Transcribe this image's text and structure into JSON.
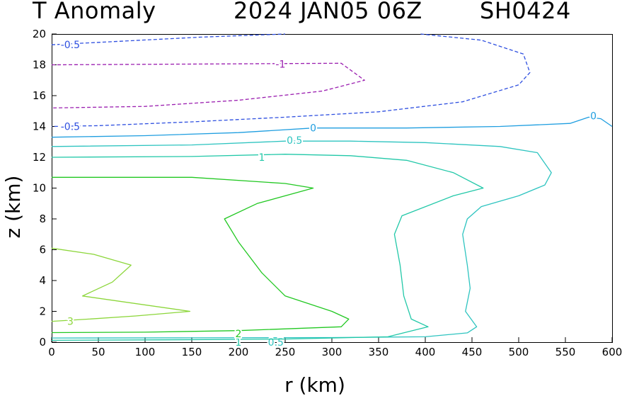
{
  "header": {
    "title_left": "T Anomaly",
    "title_mid": "2024 JAN05 06Z",
    "title_right": "SH0424"
  },
  "chart_data": {
    "type": "contour",
    "title": "T Anomaly",
    "xlabel": "r (km)",
    "ylabel": "z (km)",
    "xlim": [
      0,
      600
    ],
    "ylim": [
      0,
      20
    ],
    "xticks": [
      0,
      50,
      100,
      150,
      200,
      250,
      300,
      350,
      400,
      450,
      500,
      550,
      600
    ],
    "yticks": [
      0,
      2,
      4,
      6,
      8,
      10,
      12,
      14,
      16,
      18,
      20
    ],
    "contours": [
      {
        "level": -1,
        "label": "-1",
        "color": "#9b1fb0",
        "dashed": true,
        "points": [
          [
            0,
            18
          ],
          [
            310,
            18.1
          ],
          [
            335,
            17.0
          ],
          [
            290,
            16.3
          ],
          [
            200,
            15.7
          ],
          [
            100,
            15.3
          ],
          [
            0,
            15.2
          ]
        ],
        "labels": [
          {
            "text": "-1",
            "x": 245,
            "y": 18.05
          }
        ]
      },
      {
        "level": -0.5,
        "label": "-0.5",
        "color": "#2e4fe0",
        "dashed": true,
        "points": [
          [
            0,
            19.3
          ],
          [
            160,
            19.8
          ],
          [
            250,
            20
          ]
        ],
        "labels": [
          {
            "text": "-0.5",
            "x": 20,
            "y": 19.3
          }
        ]
      },
      {
        "level": -0.5,
        "label": "-0.5",
        "color": "#2e4fe0",
        "dashed": true,
        "points": [
          [
            395,
            20
          ],
          [
            460,
            19.6
          ],
          [
            505,
            18.7
          ],
          [
            512,
            17.5
          ],
          [
            500,
            16.7
          ],
          [
            440,
            15.6
          ],
          [
            350,
            14.95
          ],
          [
            250,
            14.6
          ],
          [
            150,
            14.3
          ],
          [
            50,
            14.05
          ],
          [
            0,
            14
          ]
        ],
        "labels": [
          {
            "text": "-0.5",
            "x": 20,
            "y": 14.0
          }
        ]
      },
      {
        "level": 0,
        "label": "0",
        "color": "#1f9ee0",
        "dashed": false,
        "points": [
          [
            0,
            13.3
          ],
          [
            100,
            13.4
          ],
          [
            200,
            13.6
          ],
          [
            280,
            13.9
          ],
          [
            380,
            13.9
          ],
          [
            480,
            14.0
          ],
          [
            555,
            14.2
          ],
          [
            575,
            14.6
          ],
          [
            588,
            14.5
          ],
          [
            600,
            14.0
          ]
        ],
        "labels": [
          {
            "text": "0",
            "x": 280,
            "y": 13.9
          },
          {
            "text": "0",
            "x": 580,
            "y": 14.7
          }
        ]
      },
      {
        "level": 0.5,
        "label": "0.5",
        "color": "#2ec4c0",
        "dashed": false,
        "points": [
          [
            0,
            12.7
          ],
          [
            150,
            12.8
          ],
          [
            250,
            13.05
          ],
          [
            320,
            13.05
          ],
          [
            400,
            12.95
          ],
          [
            480,
            12.7
          ],
          [
            520,
            12.3
          ],
          [
            535,
            11.0
          ],
          [
            528,
            10.2
          ],
          [
            500,
            9.5
          ],
          [
            460,
            8.8
          ],
          [
            445,
            8.0
          ],
          [
            440,
            7.0
          ],
          [
            445,
            5.0
          ],
          [
            448,
            3.5
          ],
          [
            443,
            2.0
          ],
          [
            455,
            1.0
          ],
          [
            445,
            0.6
          ],
          [
            400,
            0.35
          ],
          [
            300,
            0.3
          ],
          [
            150,
            0.28
          ],
          [
            0,
            0.27
          ]
        ],
        "labels": [
          {
            "text": "0.5",
            "x": 260,
            "y": 13.1
          },
          {
            "text": "0.5",
            "x": 240,
            "y": 0.0
          }
        ]
      },
      {
        "level": 1,
        "label": "1",
        "color": "#22c8a8",
        "dashed": false,
        "points": [
          [
            0,
            12.0
          ],
          [
            150,
            12.05
          ],
          [
            250,
            12.2
          ],
          [
            320,
            12.1
          ],
          [
            380,
            11.8
          ],
          [
            430,
            11.0
          ],
          [
            462,
            10.0
          ],
          [
            430,
            9.5
          ],
          [
            375,
            8.2
          ],
          [
            367,
            7.0
          ],
          [
            373,
            5.0
          ],
          [
            377,
            3.0
          ],
          [
            385,
            1.5
          ],
          [
            403,
            1.0
          ],
          [
            360,
            0.35
          ],
          [
            250,
            0.2
          ],
          [
            120,
            0.15
          ],
          [
            0,
            0.12
          ]
        ],
        "labels": [
          {
            "text": "1",
            "x": 225,
            "y": 12.0
          },
          {
            "text": "1",
            "x": 200,
            "y": 0.0
          }
        ]
      },
      {
        "level": 2,
        "label": "2",
        "color": "#22c822",
        "dashed": false,
        "points": [
          [
            0,
            10.7
          ],
          [
            150,
            10.7
          ],
          [
            250,
            10.3
          ],
          [
            280,
            10.0
          ],
          [
            220,
            9.0
          ],
          [
            185,
            8.0
          ],
          [
            200,
            6.5
          ],
          [
            225,
            4.5
          ],
          [
            250,
            3.0
          ],
          [
            300,
            2.0
          ],
          [
            318,
            1.5
          ],
          [
            310,
            1.0
          ],
          [
            200,
            0.75
          ],
          [
            100,
            0.65
          ],
          [
            0,
            0.62
          ]
        ],
        "labels": [
          {
            "text": "2",
            "x": 200,
            "y": 0.55
          }
        ]
      },
      {
        "level": 3,
        "label": "3",
        "color": "#8cd63a",
        "dashed": false,
        "points": [
          [
            0,
            6.1
          ],
          [
            45,
            5.7
          ],
          [
            85,
            5.0
          ],
          [
            65,
            3.9
          ],
          [
            33,
            3.0
          ],
          [
            148,
            2.0
          ],
          [
            90,
            1.7
          ],
          [
            40,
            1.5
          ],
          [
            0,
            1.35
          ]
        ],
        "labels": [
          {
            "text": "3",
            "x": 20,
            "y": 1.35
          }
        ]
      }
    ]
  }
}
